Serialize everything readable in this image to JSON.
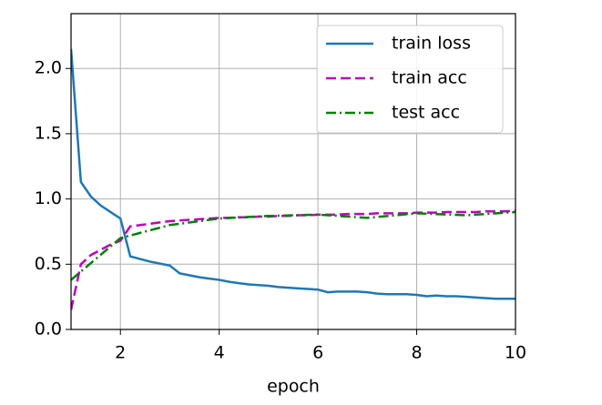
{
  "chart_data": {
    "type": "line",
    "xlabel": "epoch",
    "x": [
      1,
      1.2,
      1.4,
      1.6,
      1.8,
      2,
      2.2,
      2.4,
      2.6,
      2.8,
      3,
      3.2,
      3.4,
      3.6,
      3.8,
      4,
      4.2,
      4.4,
      4.6,
      4.8,
      5,
      5.2,
      5.4,
      5.6,
      5.8,
      6,
      6.2,
      6.4,
      6.6,
      6.8,
      7,
      7.2,
      7.4,
      7.6,
      7.8,
      8,
      8.2,
      8.4,
      8.6,
      8.8,
      9,
      9.2,
      9.4,
      9.6,
      9.8,
      10
    ],
    "series": [
      {
        "name": "train loss",
        "color": "#1f77b4",
        "linestyle": "solid",
        "values": [
          2.15,
          1.13,
          1.02,
          0.95,
          0.9,
          0.85,
          0.56,
          0.54,
          0.52,
          0.505,
          0.49,
          0.43,
          0.415,
          0.4,
          0.39,
          0.38,
          0.365,
          0.355,
          0.345,
          0.34,
          0.335,
          0.325,
          0.32,
          0.315,
          0.31,
          0.305,
          0.285,
          0.29,
          0.29,
          0.29,
          0.285,
          0.275,
          0.27,
          0.27,
          0.27,
          0.265,
          0.255,
          0.26,
          0.255,
          0.255,
          0.25,
          0.245,
          0.24,
          0.235,
          0.235,
          0.235
        ]
      },
      {
        "name": "train acc",
        "color": "#bf00bf",
        "linestyle": "dashed",
        "values": [
          0.15,
          0.5,
          0.57,
          0.61,
          0.65,
          0.68,
          0.79,
          0.8,
          0.81,
          0.82,
          0.83,
          0.835,
          0.84,
          0.845,
          0.85,
          0.855,
          0.855,
          0.86,
          0.86,
          0.865,
          0.865,
          0.87,
          0.87,
          0.875,
          0.875,
          0.88,
          0.88,
          0.88,
          0.885,
          0.885,
          0.885,
          0.89,
          0.89,
          0.89,
          0.89,
          0.895,
          0.895,
          0.895,
          0.9,
          0.9,
          0.9,
          0.9,
          0.905,
          0.905,
          0.905,
          0.91
        ]
      },
      {
        "name": "test acc",
        "color": "#008000",
        "linestyle": "dashdot",
        "x": [
          1,
          2,
          3,
          4,
          5,
          6,
          7,
          8,
          9,
          10
        ],
        "values": [
          0.38,
          0.7,
          0.8,
          0.85,
          0.87,
          0.88,
          0.855,
          0.89,
          0.875,
          0.9
        ]
      }
    ],
    "xlim": [
      1,
      10
    ],
    "xticks": [
      2,
      4,
      6,
      8,
      10
    ],
    "ylim": [
      0,
      2.42
    ],
    "yticks": [
      {
        "value": 0,
        "label": "0.0"
      },
      0.5,
      {
        "value": 1,
        "label": "1.0"
      },
      1.5,
      {
        "value": 2,
        "label": "2.0"
      }
    ],
    "grid": true,
    "legend": "upper right"
  }
}
